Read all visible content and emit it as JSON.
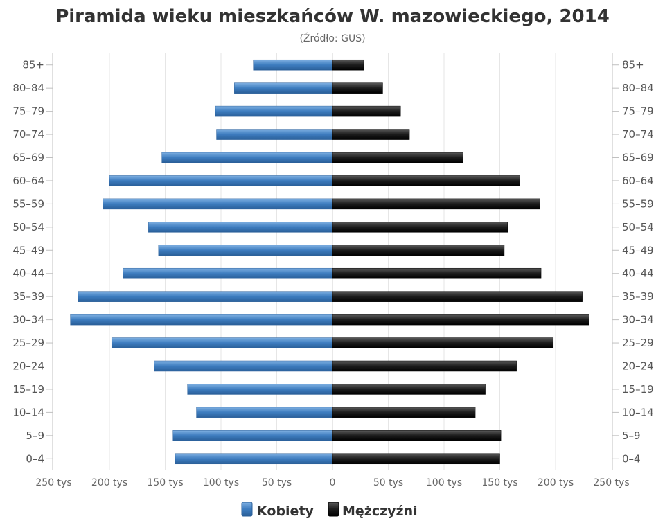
{
  "chart_data": {
    "type": "bar",
    "orientation": "horizontal-pyramid",
    "title": "Piramida wieku mieszkańców W. mazowieckiego, 2014",
    "subtitle": "(Źródło: GUS)",
    "categories": [
      "0–4",
      "5–9",
      "10–14",
      "15–19",
      "20–24",
      "25–29",
      "30–34",
      "35–39",
      "40–44",
      "45–49",
      "50–54",
      "55–59",
      "60–64",
      "65–69",
      "70–74",
      "75–79",
      "80–84",
      "85+"
    ],
    "series": [
      {
        "name": "Kobiety",
        "color": "#4a86c5",
        "values": [
          141,
          143,
          122,
          130,
          160,
          198,
          235,
          228,
          188,
          156,
          165,
          206,
          200,
          153,
          104,
          105,
          88,
          71
        ]
      },
      {
        "name": "Mężczyźni",
        "color": "#222222",
        "values": [
          150,
          151,
          128,
          137,
          165,
          198,
          230,
          224,
          187,
          154,
          157,
          186,
          168,
          117,
          69,
          61,
          45,
          28
        ]
      }
    ],
    "x_ticks": [
      "250 tys",
      "200 tys",
      "150 tys",
      "100 tys",
      "50 tys",
      "0",
      "50 tys",
      "100 tys",
      "150 tys",
      "200 tys",
      "250 tys"
    ],
    "xlim": [
      -250,
      250
    ],
    "grid": true,
    "legend_position": "bottom-center"
  }
}
